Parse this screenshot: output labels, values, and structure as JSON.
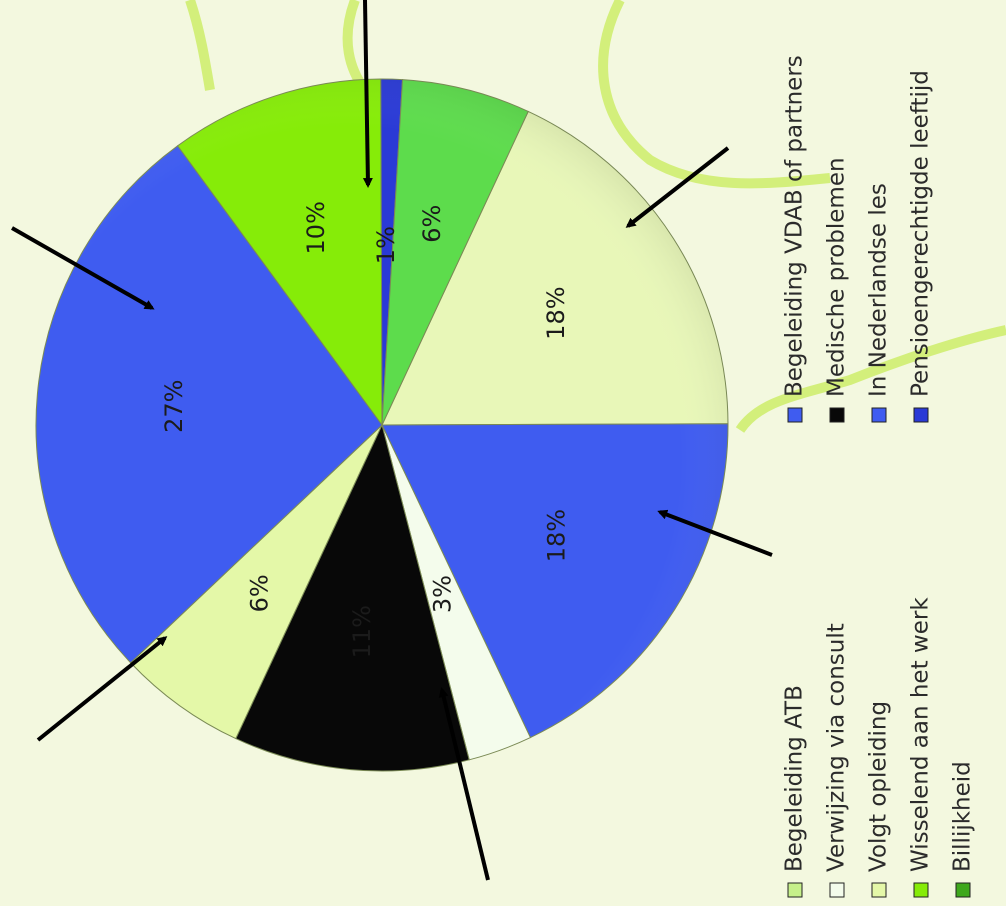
{
  "chart_data": {
    "type": "pie",
    "title": "",
    "slices": [
      {
        "label": "Begeleiding ATB",
        "value": 18,
        "display": "18%",
        "color": "#e8f7b8"
      },
      {
        "label": "Begeleiding VDAB of partners",
        "value": 18,
        "display": "18%",
        "color": "#3f5cf0"
      },
      {
        "label": "Verwijzing via consult",
        "value": 3,
        "display": "3%",
        "color": "#f4fcec"
      },
      {
        "label": "Medische problemen",
        "value": 11,
        "display": "11%",
        "color": "#080808"
      },
      {
        "label": "Volgt opleiding",
        "value": 6,
        "display": "6%",
        "color": "#e4f8a8"
      },
      {
        "label": "In Nederlandse les",
        "value": 27,
        "display": "27%",
        "color": "#3f5cf0"
      },
      {
        "label": "Wisselend aan het werk",
        "value": 10,
        "display": "10%",
        "color": "#86ec08"
      },
      {
        "label": "Pensioengerechtigde leeftijd",
        "value": 1,
        "display": "1%",
        "color": "#2a3ad6"
      },
      {
        "label": "Billijkheid",
        "value": 6,
        "display": "6%",
        "color": "#5ddc4c"
      }
    ],
    "legend": {
      "placement": "right",
      "column_1": [
        {
          "label": "Begeleiding VDAB of partners",
          "color": "#3f5cf0"
        },
        {
          "label": "Medische problemen",
          "color": "#080808"
        },
        {
          "label": "In Nederlandse les",
          "color": "#3f5cf0"
        },
        {
          "label": "Pensioengerechtigde leeftijd",
          "color": "#2a3ad6"
        }
      ],
      "column_2": [
        {
          "label": "Begeleiding ATB",
          "color": "#c6f08a"
        },
        {
          "label": "Verwijzing via consult",
          "color": "#f4fcec"
        },
        {
          "label": "Volgt opleiding",
          "color": "#e4f8a8"
        },
        {
          "label": "Wisselend aan het werk",
          "color": "#86ec08"
        },
        {
          "label": "Billijkheid",
          "color": "#3ea81c"
        }
      ]
    }
  }
}
